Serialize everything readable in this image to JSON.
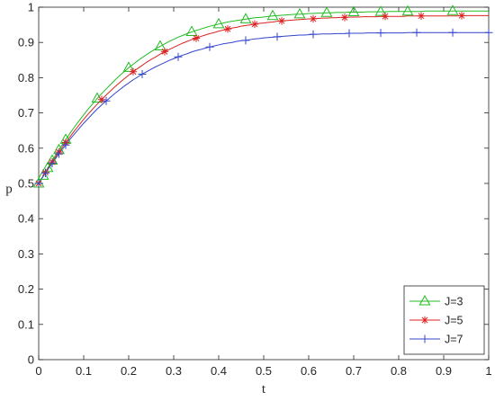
{
  "chart_data": {
    "type": "line",
    "title": "",
    "xlabel": "t",
    "ylabel": "p",
    "xlim": [
      0,
      1
    ],
    "ylim": [
      0,
      1
    ],
    "xticks": [
      "0",
      "0.1",
      "0.2",
      "0.3",
      "0.4",
      "0.5",
      "0.6",
      "0.7",
      "0.8",
      "0.9",
      "1"
    ],
    "yticks": [
      "0",
      "0.1",
      "0.2",
      "0.3",
      "0.4",
      "0.5",
      "0.6",
      "0.7",
      "0.8",
      "0.9",
      "1"
    ],
    "grid": false,
    "legend_position": "bottom-right",
    "series": [
      {
        "name": "J=3",
        "color": "#22bb22",
        "marker": "triangle",
        "x": [
          0,
          0.01,
          0.02,
          0.03,
          0.04,
          0.05,
          0.06,
          0.07,
          0.08,
          0.09,
          0.1,
          0.11,
          0.12,
          0.13,
          0.14,
          0.15,
          0.16,
          0.17,
          0.18,
          0.19,
          0.2,
          0.21,
          0.22,
          0.23,
          0.24,
          0.25,
          0.26,
          0.27,
          0.28,
          0.29,
          0.3,
          0.31,
          0.32,
          0.33,
          0.34,
          0.35,
          0.36,
          0.37,
          0.38,
          0.39,
          0.4,
          0.41,
          0.42,
          0.43,
          0.44,
          0.45,
          0.46,
          0.47,
          0.48,
          0.49,
          0.5,
          0.51,
          0.52,
          0.53,
          0.54,
          0.55,
          0.56,
          0.57,
          0.58,
          0.59,
          0.6,
          0.61,
          0.62,
          0.63,
          0.64,
          0.65,
          0.66,
          0.67,
          0.68,
          0.69,
          0.7,
          0.71,
          0.72,
          0.73,
          0.74,
          0.75,
          0.76,
          0.77,
          0.78,
          0.79,
          0.8,
          0.81,
          0.82,
          0.83,
          0.84,
          0.85,
          0.86,
          0.87,
          0.88,
          0.89,
          0.9,
          0.91,
          0.92,
          0.93,
          0.94,
          0.95,
          0.96,
          0.97,
          0.98,
          0.99,
          1
        ],
        "y": [
          0.5,
          0.522,
          0.544,
          0.565,
          0.585,
          0.605,
          0.624,
          0.643,
          0.661,
          0.678,
          0.695,
          0.711,
          0.726,
          0.741,
          0.755,
          0.768,
          0.781,
          0.794,
          0.806,
          0.817,
          0.828,
          0.838,
          0.848,
          0.857,
          0.866,
          0.874,
          0.882,
          0.889,
          0.896,
          0.903,
          0.909,
          0.915,
          0.92,
          0.925,
          0.93,
          0.934,
          0.938,
          0.942,
          0.946,
          0.949,
          0.952,
          0.955,
          0.958,
          0.96,
          0.962,
          0.964,
          0.966,
          0.968,
          0.97,
          0.971,
          0.972,
          0.974,
          0.975,
          0.976,
          0.977,
          0.978,
          0.979,
          0.98,
          0.98,
          0.981,
          0.982,
          0.982,
          0.983,
          0.983,
          0.984,
          0.984,
          0.985,
          0.985,
          0.985,
          0.986,
          0.986,
          0.986,
          0.986,
          0.987,
          0.987,
          0.987,
          0.987,
          0.987,
          0.988,
          0.988,
          0.988,
          0.988,
          0.988,
          0.988,
          0.988,
          0.988,
          0.989,
          0.989,
          0.989,
          0.989,
          0.989,
          0.989,
          0.989,
          0.989,
          0.989,
          0.989,
          0.989,
          0.989,
          0.989,
          0.989,
          0.989
        ],
        "marker_x": [
          0,
          0.01,
          0.02,
          0.03,
          0.045,
          0.06,
          0.13,
          0.2,
          0.27,
          0.34,
          0.4,
          0.46,
          0.52,
          0.58,
          0.64,
          0.7,
          0.76,
          0.82,
          0.92
        ]
      },
      {
        "name": "J=5",
        "color": "#dd2222",
        "marker": "star",
        "x": [
          0,
          0.01,
          0.02,
          0.03,
          0.04,
          0.05,
          0.06,
          0.07,
          0.08,
          0.09,
          0.1,
          0.11,
          0.12,
          0.13,
          0.14,
          0.15,
          0.16,
          0.17,
          0.18,
          0.19,
          0.2,
          0.21,
          0.22,
          0.23,
          0.24,
          0.25,
          0.26,
          0.27,
          0.28,
          0.29,
          0.3,
          0.31,
          0.32,
          0.33,
          0.34,
          0.35,
          0.36,
          0.37,
          0.38,
          0.39,
          0.4,
          0.41,
          0.42,
          0.43,
          0.44,
          0.45,
          0.46,
          0.47,
          0.48,
          0.49,
          0.5,
          0.51,
          0.52,
          0.53,
          0.54,
          0.55,
          0.56,
          0.57,
          0.58,
          0.59,
          0.6,
          0.61,
          0.62,
          0.63,
          0.64,
          0.65,
          0.66,
          0.67,
          0.68,
          0.69,
          0.7,
          0.71,
          0.72,
          0.73,
          0.74,
          0.75,
          0.76,
          0.77,
          0.78,
          0.79,
          0.8,
          0.81,
          0.82,
          0.83,
          0.84,
          0.85,
          0.86,
          0.87,
          0.88,
          0.89,
          0.9,
          0.91,
          0.92,
          0.93,
          0.94,
          0.95,
          0.96,
          0.97,
          0.98,
          0.99,
          1
        ],
        "y": [
          0.5,
          0.521,
          0.541,
          0.561,
          0.58,
          0.598,
          0.616,
          0.633,
          0.65,
          0.666,
          0.682,
          0.697,
          0.711,
          0.725,
          0.738,
          0.751,
          0.763,
          0.775,
          0.786,
          0.797,
          0.807,
          0.817,
          0.826,
          0.835,
          0.844,
          0.852,
          0.859,
          0.867,
          0.874,
          0.88,
          0.886,
          0.892,
          0.898,
          0.903,
          0.908,
          0.912,
          0.917,
          0.921,
          0.925,
          0.928,
          0.932,
          0.935,
          0.938,
          0.941,
          0.943,
          0.946,
          0.948,
          0.95,
          0.952,
          0.954,
          0.955,
          0.957,
          0.958,
          0.96,
          0.961,
          0.962,
          0.963,
          0.964,
          0.965,
          0.966,
          0.967,
          0.967,
          0.968,
          0.969,
          0.969,
          0.97,
          0.97,
          0.971,
          0.971,
          0.972,
          0.972,
          0.972,
          0.973,
          0.973,
          0.973,
          0.973,
          0.974,
          0.974,
          0.974,
          0.974,
          0.974,
          0.974,
          0.975,
          0.975,
          0.975,
          0.975,
          0.975,
          0.975,
          0.975,
          0.975,
          0.975,
          0.975,
          0.975,
          0.975,
          0.976,
          0.976,
          0.976,
          0.976,
          0.976,
          0.976,
          0.976
        ],
        "marker_x": [
          0,
          0.015,
          0.03,
          0.045,
          0.06,
          0.14,
          0.21,
          0.28,
          0.35,
          0.42,
          0.48,
          0.54,
          0.61,
          0.68,
          0.77,
          0.85,
          0.94
        ]
      },
      {
        "name": "J=7",
        "color": "#3344cc",
        "marker": "plus",
        "x": [
          0,
          0.01,
          0.02,
          0.03,
          0.04,
          0.05,
          0.06,
          0.07,
          0.08,
          0.09,
          0.1,
          0.11,
          0.12,
          0.13,
          0.14,
          0.15,
          0.16,
          0.17,
          0.18,
          0.19,
          0.2,
          0.21,
          0.22,
          0.23,
          0.24,
          0.25,
          0.26,
          0.27,
          0.28,
          0.29,
          0.3,
          0.31,
          0.32,
          0.33,
          0.34,
          0.35,
          0.36,
          0.37,
          0.38,
          0.39,
          0.4,
          0.41,
          0.42,
          0.43,
          0.44,
          0.45,
          0.46,
          0.47,
          0.48,
          0.49,
          0.5,
          0.51,
          0.52,
          0.53,
          0.54,
          0.55,
          0.56,
          0.57,
          0.58,
          0.59,
          0.6,
          0.61,
          0.62,
          0.63,
          0.64,
          0.65,
          0.66,
          0.67,
          0.68,
          0.69,
          0.7,
          0.71,
          0.72,
          0.73,
          0.74,
          0.75,
          0.76,
          0.77,
          0.78,
          0.79,
          0.8,
          0.81,
          0.82,
          0.83,
          0.84,
          0.85,
          0.86,
          0.87,
          0.88,
          0.89,
          0.9,
          0.91,
          0.92,
          0.93,
          0.94,
          0.95,
          0.96,
          0.97,
          0.98,
          0.99,
          1
        ],
        "y": [
          0.5,
          0.52,
          0.539,
          0.557,
          0.575,
          0.593,
          0.609,
          0.626,
          0.641,
          0.656,
          0.671,
          0.684,
          0.698,
          0.711,
          0.723,
          0.734,
          0.745,
          0.756,
          0.766,
          0.776,
          0.785,
          0.794,
          0.802,
          0.81,
          0.817,
          0.824,
          0.831,
          0.837,
          0.843,
          0.849,
          0.854,
          0.859,
          0.864,
          0.868,
          0.873,
          0.877,
          0.88,
          0.884,
          0.887,
          0.89,
          0.893,
          0.896,
          0.898,
          0.9,
          0.903,
          0.905,
          0.906,
          0.908,
          0.91,
          0.911,
          0.913,
          0.914,
          0.915,
          0.916,
          0.917,
          0.918,
          0.919,
          0.92,
          0.921,
          0.921,
          0.922,
          0.923,
          0.923,
          0.924,
          0.924,
          0.924,
          0.925,
          0.925,
          0.925,
          0.926,
          0.926,
          0.926,
          0.926,
          0.927,
          0.927,
          0.927,
          0.927,
          0.927,
          0.927,
          0.927,
          0.927,
          0.927,
          0.928,
          0.928,
          0.928,
          0.928,
          0.928,
          0.928,
          0.928,
          0.928,
          0.928,
          0.928,
          0.928,
          0.928,
          0.928,
          0.928,
          0.928,
          0.928,
          0.928,
          0.928,
          0.928
        ],
        "marker_x": [
          0,
          0.015,
          0.03,
          0.045,
          0.06,
          0.15,
          0.23,
          0.31,
          0.38,
          0.46,
          0.53,
          0.61,
          0.69,
          0.76,
          0.84,
          0.92,
          1.0
        ]
      }
    ]
  }
}
